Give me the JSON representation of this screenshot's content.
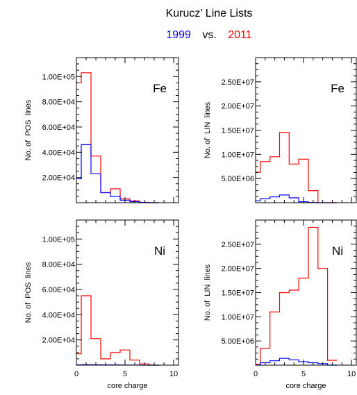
{
  "figure": {
    "title": "Kurucz’ Line Lists",
    "subtitle": [
      {
        "text": "1999",
        "color": "#0000ff"
      },
      {
        "text": "vs.",
        "color": "#000000"
      },
      {
        "text": "2011",
        "color": "#ff0000"
      }
    ]
  },
  "chart_data": [
    {
      "type": "step",
      "panel_label": "Fe",
      "ylabel": "No. of  POS  lines",
      "xlabel": "",
      "xlim": [
        0,
        10.5
      ],
      "ylim": [
        0,
        115000
      ],
      "xticks": [
        "0",
        "5",
        "10"
      ],
      "show_xtick_labels": false,
      "yticks": [
        {
          "value": 20000,
          "label": "2.00E+04"
        },
        {
          "value": 40000,
          "label": "4.00E+04"
        },
        {
          "value": 60000,
          "label": "6.00E+04"
        },
        {
          "value": 80000,
          "label": "8.00E+04"
        },
        {
          "value": 100000,
          "label": "1.00E+05"
        }
      ],
      "bin_edges": [
        0,
        0.5,
        1.5,
        2.5,
        3.5,
        4.5,
        5.5,
        6.5,
        7.5,
        8.5
      ],
      "series": [
        {
          "name": "2011",
          "color": "#ff0000",
          "values": [
            95000,
            103000,
            37000,
            8000,
            11000,
            3000,
            1500,
            300,
            0
          ]
        },
        {
          "name": "1999",
          "color": "#0000ff",
          "values": [
            19000,
            46000,
            23000,
            8000,
            5000,
            2000,
            800,
            200,
            0
          ]
        }
      ]
    },
    {
      "type": "step",
      "panel_label": "Fe",
      "ylabel": "No. of  LIN  lines",
      "xlabel": "",
      "xlim": [
        0,
        10.5
      ],
      "ylim": [
        0,
        30000000
      ],
      "xticks": [
        "0",
        "5",
        "10"
      ],
      "show_xtick_labels": false,
      "yticks": [
        {
          "value": 5000000,
          "label": "5.00E+06"
        },
        {
          "value": 10000000,
          "label": "1.00E+07"
        },
        {
          "value": 15000000,
          "label": "1.50E+07"
        },
        {
          "value": 20000000,
          "label": "2.00E+07"
        },
        {
          "value": 25000000,
          "label": "2.50E+07"
        }
      ],
      "bin_edges": [
        0,
        0.5,
        1.5,
        2.5,
        3.5,
        4.5,
        5.5,
        6.5,
        7.5,
        8.5
      ],
      "series": [
        {
          "name": "2011",
          "color": "#ff0000",
          "values": [
            6300000,
            8500000,
            9500000,
            14500000,
            8000000,
            9000000,
            2500000,
            0,
            0
          ]
        },
        {
          "name": "1999",
          "color": "#0000ff",
          "values": [
            400000,
            800000,
            1200000,
            1600000,
            1000000,
            200000,
            50000,
            0,
            0
          ]
        }
      ]
    },
    {
      "type": "step",
      "panel_label": "Ni",
      "ylabel": "No. of  POS  lines",
      "xlabel": "core charge",
      "xlim": [
        0,
        10.5
      ],
      "ylim": [
        0,
        115000
      ],
      "xticks": [
        "0",
        "5",
        "10"
      ],
      "show_xtick_labels": true,
      "yticks": [
        {
          "value": 20000,
          "label": "2.00E+04"
        },
        {
          "value": 40000,
          "label": "4.00E+04"
        },
        {
          "value": 60000,
          "label": "6.00E+04"
        },
        {
          "value": 80000,
          "label": "8.00E+04"
        },
        {
          "value": 100000,
          "label": "1.00E+05"
        }
      ],
      "bin_edges": [
        0,
        0.5,
        1.5,
        2.5,
        3.5,
        4.5,
        5.5,
        6.5,
        7.5,
        8.5
      ],
      "series": [
        {
          "name": "2011",
          "color": "#ff0000",
          "values": [
            9000,
            55000,
            21000,
            5000,
            10000,
            12000,
            4000,
            1000,
            0
          ]
        },
        {
          "name": "1999",
          "color": "#0000ff",
          "values": [
            200,
            400,
            300,
            200,
            200,
            100,
            100,
            0,
            0
          ]
        }
      ]
    },
    {
      "type": "step",
      "panel_label": "Ni",
      "ylabel": "No. of  LIN  lines",
      "xlabel": "core charge",
      "xlim": [
        0,
        10.5
      ],
      "ylim": [
        0,
        30000000
      ],
      "xticks": [
        "0",
        "5",
        "10"
      ],
      "show_xtick_labels": true,
      "yticks": [
        {
          "value": 5000000,
          "label": "5.00E+06"
        },
        {
          "value": 10000000,
          "label": "1.00E+07"
        },
        {
          "value": 15000000,
          "label": "1.50E+07"
        },
        {
          "value": 20000000,
          "label": "2.00E+07"
        },
        {
          "value": 25000000,
          "label": "2.50E+07"
        }
      ],
      "bin_edges": [
        0,
        0.5,
        1.5,
        2.5,
        3.5,
        4.5,
        5.5,
        6.5,
        7.5,
        8.5
      ],
      "series": [
        {
          "name": "2011",
          "color": "#ff0000",
          "values": [
            200000,
            3500000,
            11000000,
            15000000,
            15500000,
            18000000,
            28500000,
            20000000,
            1000000
          ]
        },
        {
          "name": "1999",
          "color": "#0000ff",
          "values": [
            0,
            500000,
            900000,
            1400000,
            1100000,
            700000,
            500000,
            300000,
            0
          ]
        }
      ]
    }
  ]
}
